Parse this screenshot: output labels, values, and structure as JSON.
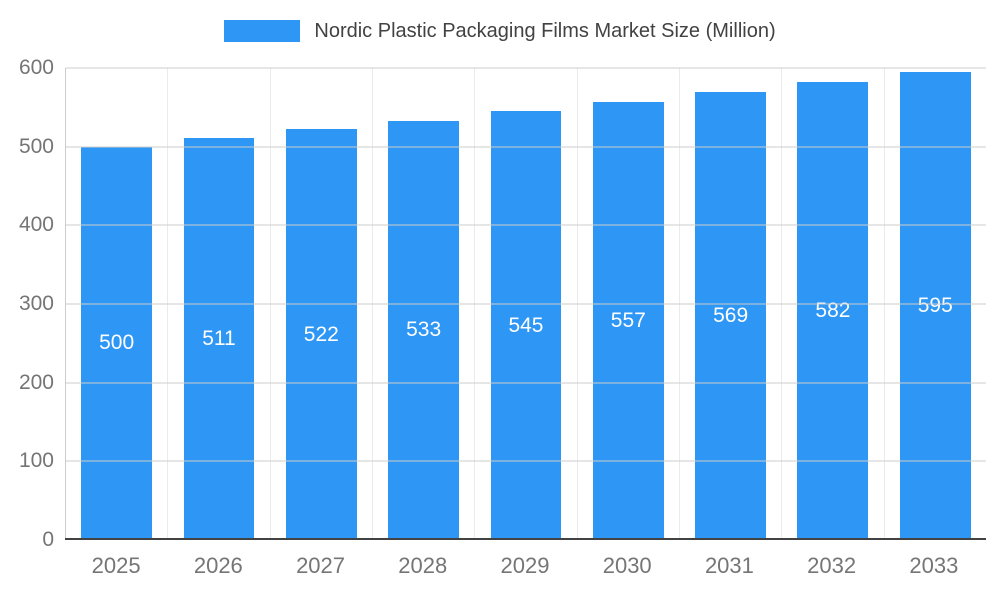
{
  "chart_data": {
    "type": "bar",
    "title": "Nordic Plastic Packaging Films Market Size (Million)",
    "categories": [
      "2025",
      "2026",
      "2027",
      "2028",
      "2029",
      "2030",
      "2031",
      "2032",
      "2033"
    ],
    "values": [
      500,
      511,
      522,
      533,
      545,
      557,
      569,
      582,
      595
    ],
    "xlabel": "",
    "ylabel": "",
    "ylim": [
      0,
      600
    ],
    "yticks": [
      0,
      100,
      200,
      300,
      400,
      500,
      600
    ],
    "grid": true,
    "legend_position": "top",
    "bar_color": "#2E96F5",
    "bar_label_color": "#ffffff",
    "axis_text_color": "#757575",
    "title_color": "#424242",
    "gridline_color": "#cccccc",
    "baseline_color": "#424242"
  }
}
